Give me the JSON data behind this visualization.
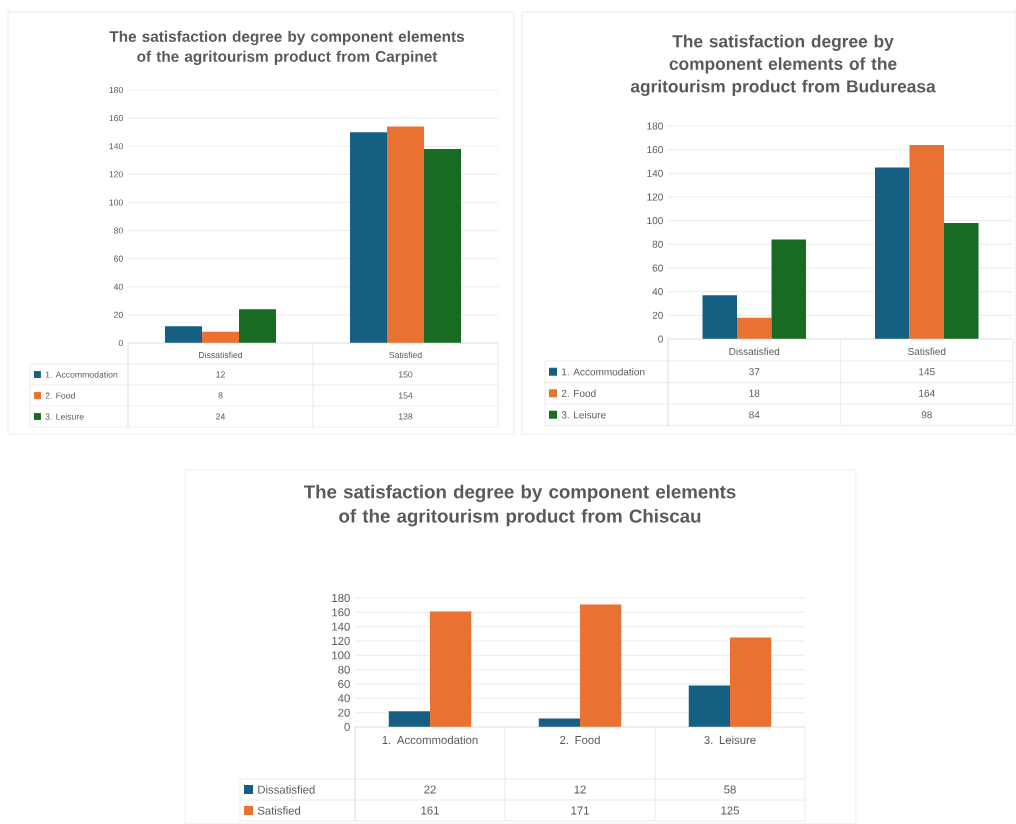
{
  "chart_data": [
    {
      "type": "bar",
      "title": "The satisfaction degree by component elements of the agritourism product from Carpinet",
      "categories": [
        "Dissatisfied",
        "Satisfied"
      ],
      "series": [
        {
          "name": "1. Accommodation",
          "color": "#156082",
          "values": [
            12,
            150
          ]
        },
        {
          "name": "2. Food",
          "color": "#e97132",
          "values": [
            8,
            154
          ]
        },
        {
          "name": "3. Leisure",
          "color": "#196b24",
          "values": [
            24,
            138
          ]
        }
      ],
      "ylim": [
        0,
        180
      ],
      "yticks": [
        0,
        20,
        40,
        60,
        80,
        100,
        120,
        140,
        160,
        180
      ],
      "grid": "y",
      "legend": "bottom",
      "data_labels": true
    },
    {
      "type": "bar",
      "title": "The satisfaction degree by component elements of the agritourism product from Budureasa",
      "categories": [
        "Dissatisfied",
        "Satisfied"
      ],
      "series": [
        {
          "name": "1. Accommodation",
          "color": "#156082",
          "values": [
            37,
            145
          ]
        },
        {
          "name": "2. Food",
          "color": "#e97132",
          "values": [
            18,
            164
          ]
        },
        {
          "name": "3. Leisure",
          "color": "#196b24",
          "values": [
            84,
            98
          ]
        }
      ],
      "ylim": [
        0,
        180
      ],
      "yticks": [
        0,
        20,
        40,
        60,
        80,
        100,
        120,
        140,
        160,
        180
      ],
      "grid": "y",
      "legend": "bottom",
      "data_labels": true
    },
    {
      "type": "bar",
      "title": "The satisfaction degree by component elements of the agritourism product from Chiscau",
      "categories": [
        "1. Accommodation",
        "2. Food",
        "3. Leisure"
      ],
      "series": [
        {
          "name": "Dissatisfied",
          "color": "#156082",
          "values": [
            22,
            12,
            58
          ]
        },
        {
          "name": "Satisfied",
          "color": "#e97132",
          "values": [
            161,
            171,
            125
          ]
        }
      ],
      "ylim": [
        0,
        180
      ],
      "yticks": [
        0,
        20,
        40,
        60,
        80,
        100,
        120,
        140,
        160,
        180
      ],
      "grid": "y",
      "legend": "bottom",
      "data_labels": true
    }
  ]
}
